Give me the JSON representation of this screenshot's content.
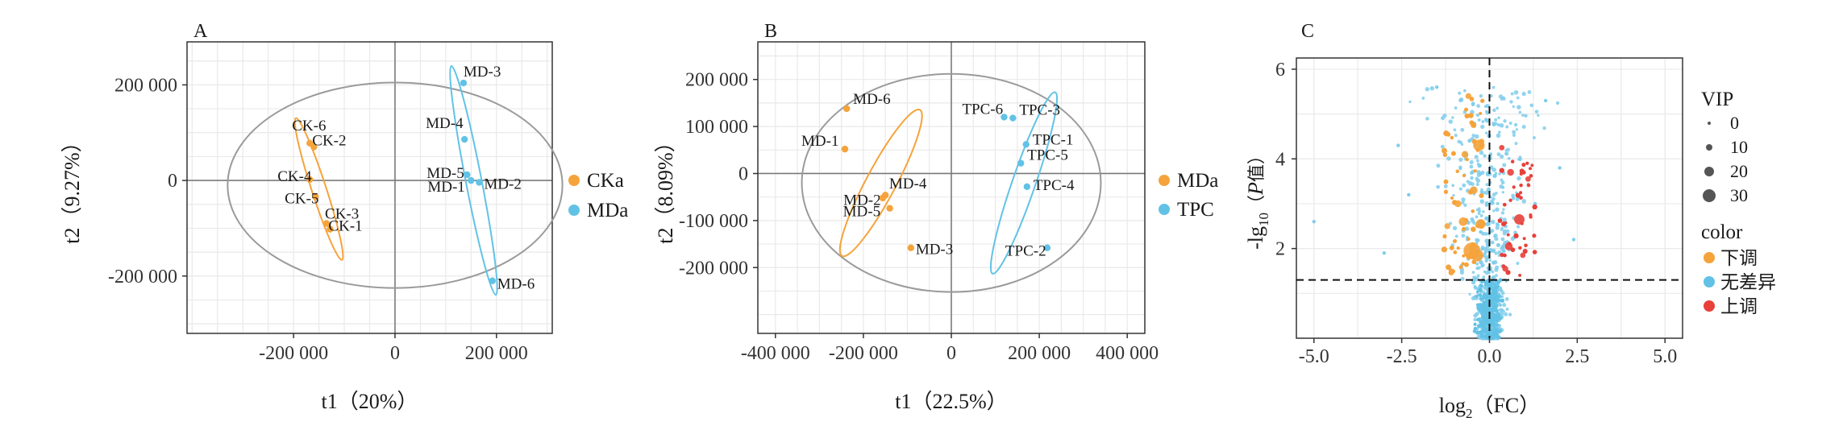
{
  "colors": {
    "orange": "#F5A33B",
    "blue": "#62C2E6",
    "red": "#E8403A",
    "ellipse": "#9a9a9a",
    "grid": "#e9e9e9",
    "axis_zero": "#7a7a7a"
  },
  "chart_data": [
    {
      "type": "scatter",
      "panel_label": "A",
      "xlabel": "t1（20%）",
      "ylabel": "t2（9.27%）",
      "xlim": [
        -410000,
        310000
      ],
      "ylim": [
        -320000,
        290000
      ],
      "xticks": [
        {
          "v": -200000,
          "label": "-200 000"
        },
        {
          "v": 0,
          "label": "0"
        },
        {
          "v": 200000,
          "label": "200 000"
        }
      ],
      "yticks": [
        {
          "v": 200000,
          "label": "200 000"
        },
        {
          "v": 0,
          "label": "0"
        },
        {
          "v": -200000,
          "label": "-200 000"
        }
      ],
      "legend": [
        {
          "name": "CKa",
          "color": "#F5A33B"
        },
        {
          "name": "MDa",
          "color": "#62C2E6"
        }
      ],
      "series": [
        {
          "name": "CKa",
          "color": "#F5A33B",
          "points": [
            {
              "label": "CK-6",
              "x": -168000,
              "y": 78000
            },
            {
              "label": "CK-2",
              "x": -160000,
              "y": 70000
            },
            {
              "label": "CK-4",
              "x": -168000,
              "y": 2000
            },
            {
              "label": "CK-5",
              "x": -157000,
              "y": -34000
            },
            {
              "label": "CK-3",
              "x": -135000,
              "y": -90000
            },
            {
              "label": "CK-1",
              "x": -128000,
              "y": -102000
            }
          ]
        },
        {
          "name": "MDa",
          "color": "#62C2E6",
          "points": [
            {
              "label": "MD-3",
              "x": 135000,
              "y": 204000
            },
            {
              "label": "MD-4",
              "x": 137000,
              "y": 86000
            },
            {
              "label": "MD-5",
              "x": 142000,
              "y": 12000
            },
            {
              "label": "MD-1",
              "x": 150000,
              "y": 0
            },
            {
              "label": "MD-2",
              "x": 166000,
              "y": -4000
            },
            {
              "label": "MD-6",
              "x": 192000,
              "y": -210000
            }
          ]
        }
      ]
    },
    {
      "type": "scatter",
      "panel_label": "B",
      "xlabel": "t1（22.5%）",
      "ylabel": "t2（8.09%）",
      "xlim": [
        -440000,
        440000
      ],
      "ylim": [
        -340000,
        280000
      ],
      "xticks": [
        {
          "v": -400000,
          "label": "-400 000"
        },
        {
          "v": -200000,
          "label": "-200 000"
        },
        {
          "v": 0,
          "label": "0"
        },
        {
          "v": 200000,
          "label": "200 000"
        },
        {
          "v": 400000,
          "label": "400 000"
        }
      ],
      "yticks": [
        {
          "v": 200000,
          "label": "200 000"
        },
        {
          "v": 100000,
          "label": "100 000"
        },
        {
          "v": 0,
          "label": "0"
        },
        {
          "v": -100000,
          "label": "-100 000"
        },
        {
          "v": -200000,
          "label": "-200 000"
        }
      ],
      "legend": [
        {
          "name": "MDa",
          "color": "#F5A33B"
        },
        {
          "name": "TPC",
          "color": "#62C2E6"
        }
      ],
      "series": [
        {
          "name": "MDa",
          "color": "#F5A33B",
          "points": [
            {
              "label": "MD-6",
              "x": -238000,
              "y": 138000
            },
            {
              "label": "MD-1",
              "x": -242000,
              "y": 52000
            },
            {
              "label": "MD-2",
              "x": -150000,
              "y": -46000
            },
            {
              "label": "MD-4",
              "x": -156000,
              "y": -52000
            },
            {
              "label": "MD-5",
              "x": -140000,
              "y": -74000
            },
            {
              "label": "MD-3",
              "x": -92000,
              "y": -158000
            }
          ]
        },
        {
          "name": "TPC",
          "color": "#62C2E6",
          "points": [
            {
              "label": "TPC-6",
              "x": 120000,
              "y": 120000
            },
            {
              "label": "TPC-3",
              "x": 140000,
              "y": 118000
            },
            {
              "label": "TPC-1",
              "x": 170000,
              "y": 62000
            },
            {
              "label": "TPC-5",
              "x": 158000,
              "y": 22000
            },
            {
              "label": "TPC-4",
              "x": 172000,
              "y": -28000
            },
            {
              "label": "TPC-2",
              "x": 218000,
              "y": -158000
            }
          ]
        }
      ]
    },
    {
      "type": "scatter",
      "panel_label": "C",
      "xlabel_prefix": "log",
      "xlabel_sub": "2",
      "xlabel_suffix": "（FC）",
      "ylabel_prefix": "-lg",
      "ylabel_sub": "10",
      "ylabel_paren_open": "（",
      "ylabel_p": "P",
      "ylabel_val": "值",
      "ylabel_paren_close": "）",
      "xlim": [
        -5.5,
        5.5
      ],
      "ylim": [
        0,
        6.25
      ],
      "xticks": [
        {
          "v": -5,
          "label": "-5.0"
        },
        {
          "v": -2.5,
          "label": "-2.5"
        },
        {
          "v": 0,
          "label": "0.0"
        },
        {
          "v": 2.5,
          "label": "2.5"
        },
        {
          "v": 5,
          "label": "5.0"
        }
      ],
      "yticks": [
        {
          "v": 6,
          "label": "6"
        },
        {
          "v": 4,
          "label": "4"
        },
        {
          "v": 2,
          "label": "2"
        }
      ],
      "thresholds": {
        "x": 0,
        "y": 1.3
      },
      "legend_size_title": "VIP",
      "legend_sizes": [
        {
          "label": "0",
          "r": 2
        },
        {
          "label": "10",
          "r": 4
        },
        {
          "label": "20",
          "r": 6
        },
        {
          "label": "30",
          "r": 8
        }
      ],
      "legend_color_title": "color",
      "legend_colors": [
        {
          "name": "下调",
          "color": "#F5A33B"
        },
        {
          "name": "无差异",
          "color": "#62C2E6"
        },
        {
          "name": "上调",
          "color": "#E8403A"
        }
      ],
      "highlight_points": [
        {
          "group": "下调",
          "x": -0.5,
          "y": 1.95,
          "vip": 30
        },
        {
          "group": "下调",
          "x": -0.35,
          "y": 1.85,
          "vip": 20
        },
        {
          "group": "下调",
          "x": -0.3,
          "y": 4.3,
          "vip": 18
        },
        {
          "group": "下调",
          "x": -0.6,
          "y": 5.4,
          "vip": 6
        },
        {
          "group": "下调",
          "x": -0.7,
          "y": 4.1,
          "vip": 8
        },
        {
          "group": "下调",
          "x": -0.45,
          "y": 3.3,
          "vip": 10
        },
        {
          "group": "下调",
          "x": -0.75,
          "y": 2.6,
          "vip": 12
        },
        {
          "group": "下调",
          "x": -1.2,
          "y": 2.5,
          "vip": 6
        },
        {
          "group": "下调",
          "x": -0.9,
          "y": 3.0,
          "vip": 8
        },
        {
          "group": "下调",
          "x": -0.25,
          "y": 2.55,
          "vip": 14
        },
        {
          "group": "上调",
          "x": 0.85,
          "y": 2.65,
          "vip": 16
        },
        {
          "group": "上调",
          "x": 0.6,
          "y": 3.7,
          "vip": 8
        },
        {
          "group": "上调",
          "x": 0.55,
          "y": 2.05,
          "vip": 10
        },
        {
          "group": "上调",
          "x": 0.45,
          "y": 1.55,
          "vip": 6
        },
        {
          "group": "上调",
          "x": 0.95,
          "y": 1.85,
          "vip": 5
        },
        {
          "group": "上调",
          "x": 0.35,
          "y": 4.25,
          "vip": 5
        },
        {
          "group": "上调",
          "x": 1.1,
          "y": 3.55,
          "vip": 5
        }
      ]
    }
  ]
}
